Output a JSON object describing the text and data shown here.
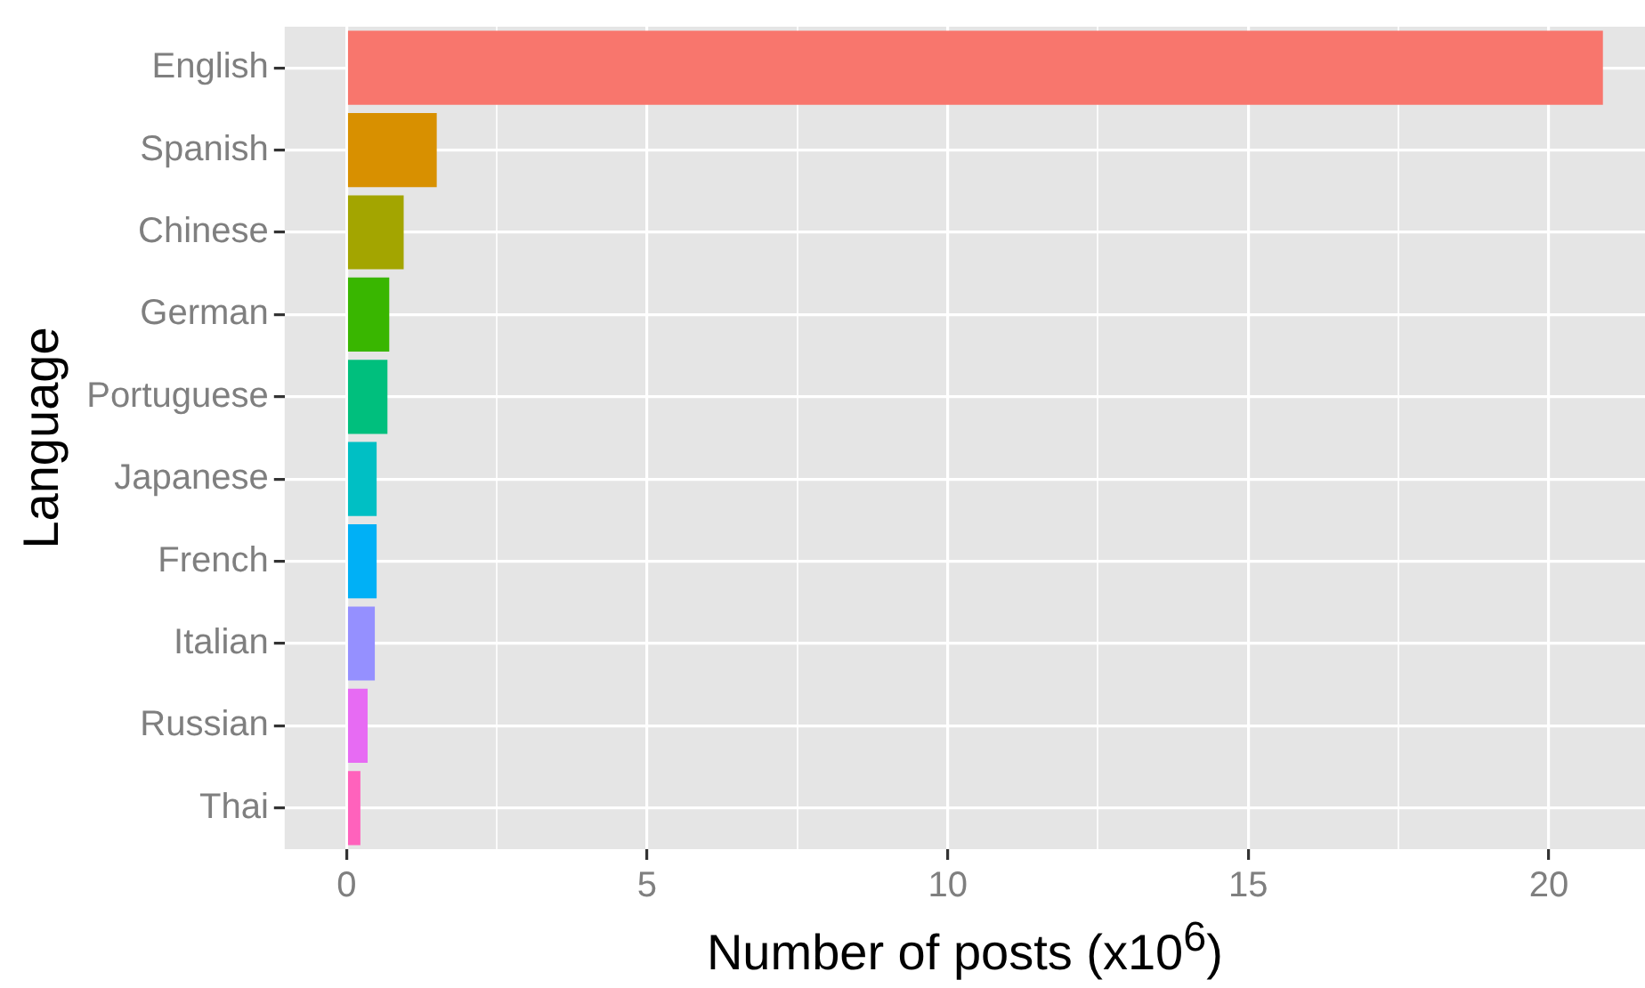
{
  "chart_data": {
    "type": "bar",
    "orientation": "horizontal",
    "xlabel": "Number of posts (x10$^{6}$)",
    "ylabel": "Language",
    "categories": [
      "English",
      "Spanish",
      "Chinese",
      "German",
      "Portuguese",
      "Japanese",
      "French",
      "Italian",
      "Russian",
      "Thai"
    ],
    "values": [
      20.9,
      1.5,
      0.95,
      0.71,
      0.68,
      0.5,
      0.5,
      0.47,
      0.35,
      0.23
    ],
    "colors": [
      "#f8766d",
      "#d89000",
      "#a3a500",
      "#39b600",
      "#00bf7d",
      "#00bfc4",
      "#00b0f6",
      "#9590ff",
      "#e76bf3",
      "#ff62bc"
    ],
    "xlim": [
      -1.03,
      21.6
    ],
    "xticks": [
      0,
      {
        "value": 2.5,
        "label": null
      },
      5,
      {
        "value": 7.5,
        "label": null
      },
      10,
      {
        "value": 12.5,
        "label": null
      },
      15,
      {
        "value": 17.5,
        "label": null
      },
      20
    ],
    "grid": true,
    "legend": false
  }
}
